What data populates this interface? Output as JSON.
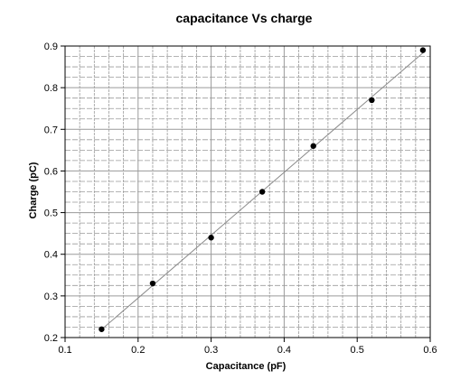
{
  "chart_data": {
    "type": "scatter",
    "title": "capacitance Vs charge",
    "xlabel": "Capacitance (pF)",
    "ylabel": "Charge (pC)",
    "xlim": [
      0.1,
      0.6
    ],
    "ylim": [
      0.2,
      0.9
    ],
    "xticks": [
      "0.1",
      "0.2",
      "0.3",
      "0.4",
      "0.5",
      "0.6"
    ],
    "yticks": [
      "0.2",
      "0.3",
      "0.4",
      "0.5",
      "0.6",
      "0.7",
      "0.8",
      "0.9"
    ],
    "grid": true,
    "fit_line": true,
    "points": [
      {
        "x": 0.15,
        "y": 0.22
      },
      {
        "x": 0.22,
        "y": 0.33
      },
      {
        "x": 0.3,
        "y": 0.44
      },
      {
        "x": 0.37,
        "y": 0.55
      },
      {
        "x": 0.44,
        "y": 0.66
      },
      {
        "x": 0.52,
        "y": 0.77
      },
      {
        "x": 0.59,
        "y": 0.89
      }
    ],
    "colors": {
      "grid": "#9a9a9a",
      "fit_line": "#8a8a8a",
      "point": "#000000",
      "axis": "#000000"
    }
  }
}
